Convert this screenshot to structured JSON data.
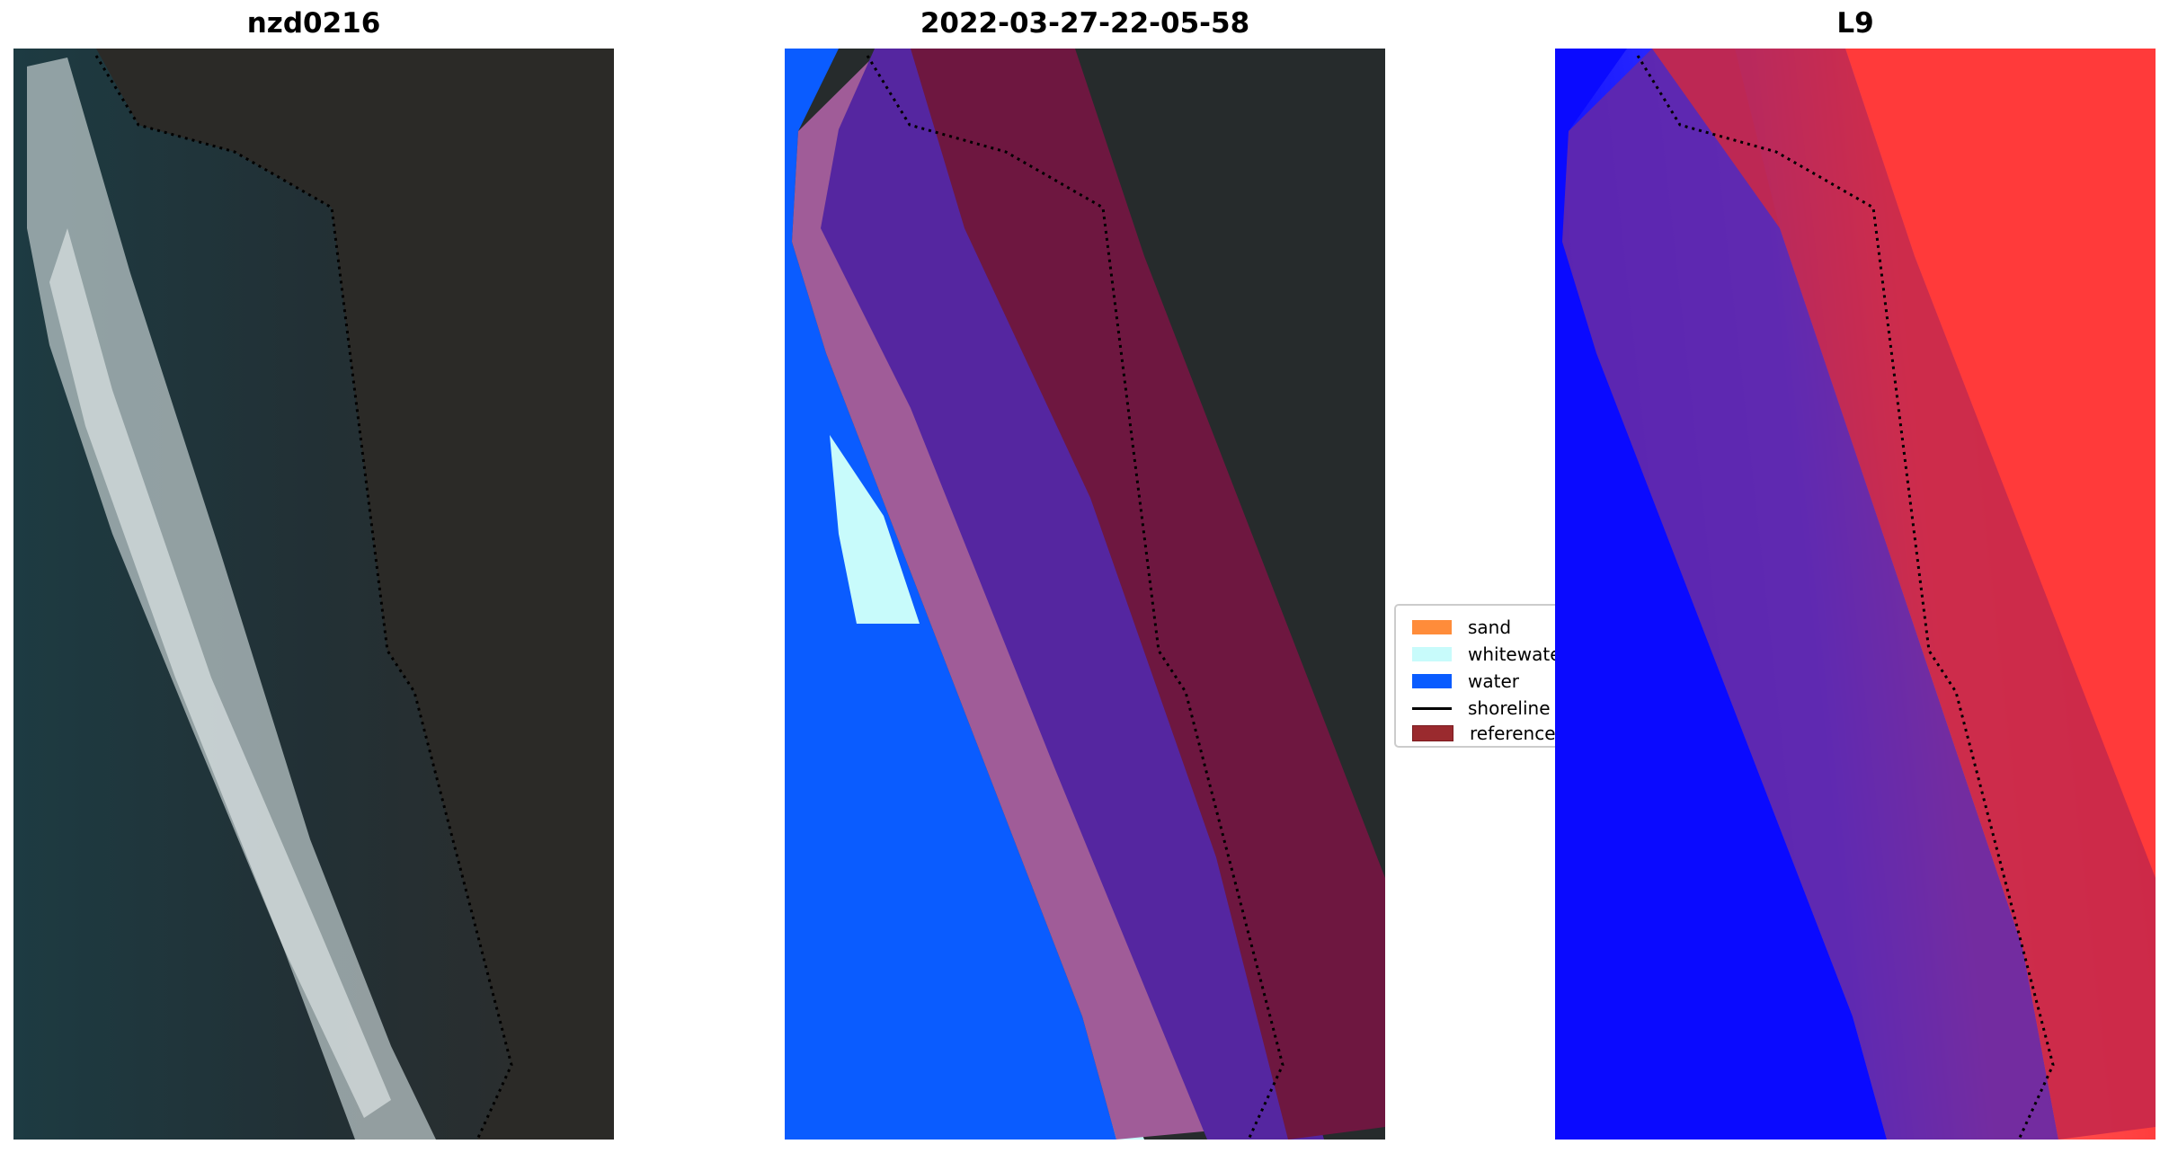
{
  "chart_data": [
    {
      "type": "image",
      "title": "nzd0216",
      "content": "RGB satellite image with shoreline overlay"
    },
    {
      "type": "image",
      "title": "2022-03-27-22-05-58",
      "content": "classified image",
      "legend": {
        "placement": "right",
        "items": [
          {
            "label": "sand",
            "color": "#ff8c3a"
          },
          {
            "label": "whitewater",
            "color": "#c8fbfb"
          },
          {
            "label": "water",
            "color": "#0a5cff"
          },
          {
            "label": "shoreline",
            "color": "#000000",
            "kind": "line"
          },
          {
            "label": "reference s",
            "color": "#9a2a2e"
          }
        ]
      }
    },
    {
      "type": "heatmap",
      "title": "L9",
      "colormap": "bwr"
    }
  ]
}
